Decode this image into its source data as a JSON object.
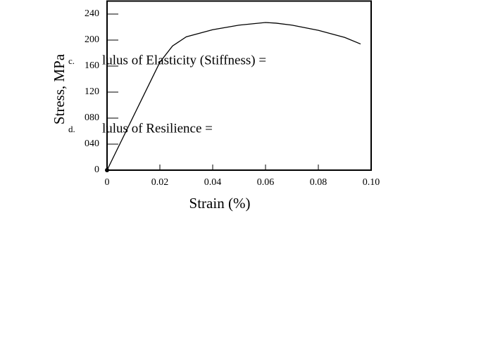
{
  "chart_data": {
    "type": "line",
    "x_label": "Strain (%)",
    "y_label": "Stress, MPa",
    "annotations": [
      {
        "marker": "c.",
        "text": "lulus of Elasticity (Stiffness) ="
      },
      {
        "marker": "d.",
        "text": "lulus of Resilience ="
      }
    ],
    "series": [
      {
        "color": "#000000",
        "x": [
          0,
          0.02,
          0.0248,
          0.03,
          0.04,
          0.05,
          0.06,
          0.064,
          0.07,
          0.08,
          0.09,
          0.096
        ],
        "values": [
          0,
          166,
          191,
          205,
          216,
          223,
          227,
          226,
          223,
          215,
          204,
          194
        ]
      }
    ],
    "xlim": [
      0,
      0.1
    ],
    "ylim": [
      0,
      260
    ],
    "xticks": [
      0,
      0.02,
      0.04,
      0.06,
      0.08,
      {
        "value": 0.1,
        "label": "0.10"
      }
    ],
    "yticks": [
      0,
      {
        "value": 40,
        "label": "040"
      },
      {
        "value": 80,
        "label": "080"
      },
      120,
      160,
      200,
      240
    ]
  }
}
